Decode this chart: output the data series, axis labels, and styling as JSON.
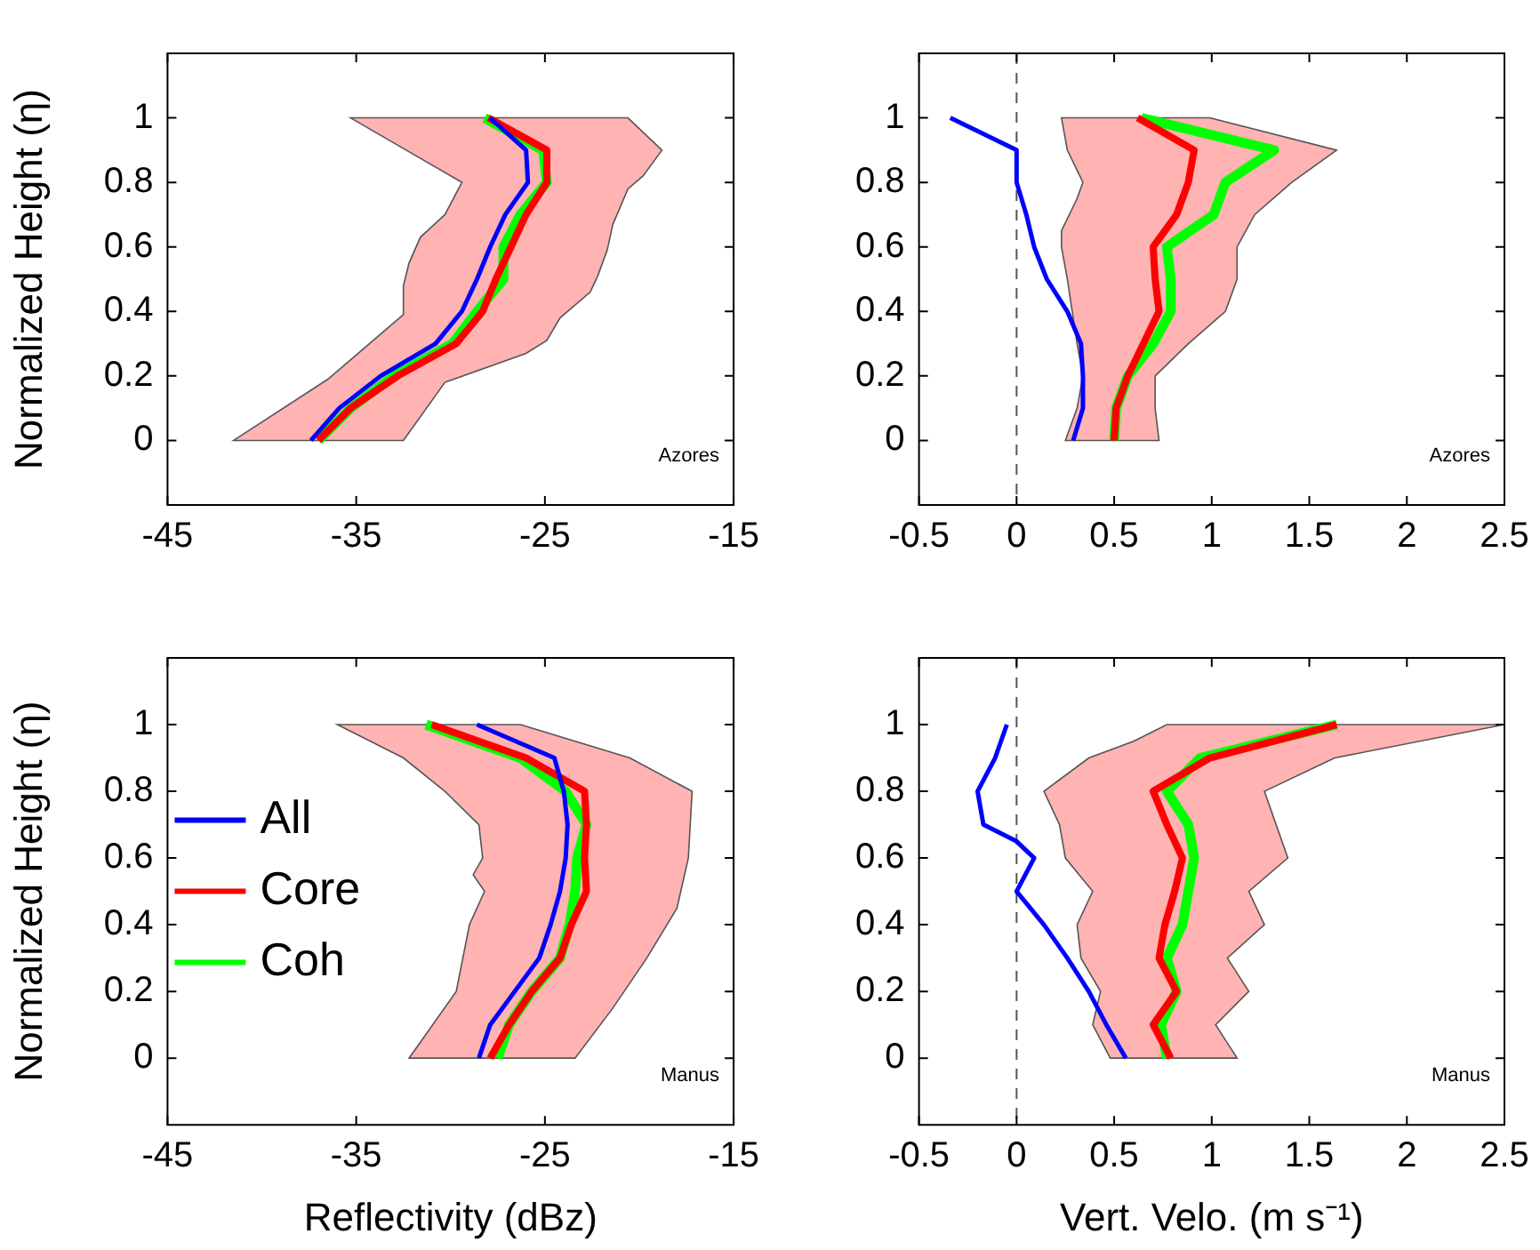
{
  "chart_data": [
    {
      "type": "line",
      "ylabel": "Normalized Height (η)",
      "xlim": [
        -45,
        -15
      ],
      "xticks": [
        -45,
        -35,
        -25,
        -15
      ],
      "ylim": [
        -0.2,
        1.2
      ],
      "yticks": [
        0,
        0.2,
        0.4,
        0.6,
        0.8,
        1
      ],
      "grid": false,
      "legend": false,
      "annotations": [
        "Azores"
      ],
      "series": [
        {
          "type": "area",
          "color": "#ffb3b3",
          "x": [
            -20.6,
            -18.8,
            -19.8,
            -20.6,
            -21.4,
            -21.7,
            -22.2,
            -22.6,
            -24.2,
            -24.9,
            -26.0,
            -30.3,
            -32.5,
            -41.5,
            -36.5,
            -33.7,
            -32.5,
            -32.5,
            -32.2,
            -31.6,
            -30.3,
            -29.4,
            -35.3
          ],
          "values": [
            1,
            0.9,
            0.82,
            0.78,
            0.67,
            0.59,
            0.51,
            0.46,
            0.38,
            0.31,
            0.27,
            0.18,
            0,
            0,
            0.19,
            0.33,
            0.39,
            0.48,
            0.55,
            0.63,
            0.7,
            0.8,
            1
          ]
        },
        {
          "color": "#0000ff",
          "x": [
            -37.4,
            -35.9,
            -33.7,
            -30.8,
            -29.4,
            -28.6,
            -27.9,
            -27.1,
            -25.9,
            -26.0,
            -27.9
          ],
          "values": [
            0,
            0.1,
            0.2,
            0.3,
            0.4,
            0.5,
            0.6,
            0.7,
            0.8,
            0.9,
            1
          ]
        },
        {
          "color": "#ff0000",
          "x": [
            -37.0,
            -35.3,
            -32.8,
            -29.7,
            -28.3,
            -27.6,
            -26.8,
            -26.0,
            -24.9,
            -24.9,
            -28.0
          ],
          "values": [
            0,
            0.1,
            0.2,
            0.3,
            0.4,
            0.5,
            0.6,
            0.7,
            0.8,
            0.9,
            1
          ]
        },
        {
          "color": "#00ff00",
          "x": [
            -37.0,
            -35.3,
            -33.0,
            -29.9,
            -28.6,
            -27.2,
            -27.2,
            -26.3,
            -24.9,
            -25.1,
            -28.2
          ],
          "values": [
            0,
            0.1,
            0.2,
            0.3,
            0.4,
            0.5,
            0.6,
            0.7,
            0.8,
            0.9,
            1
          ]
        }
      ]
    },
    {
      "type": "line",
      "xlim": [
        -0.5,
        2.5
      ],
      "xticks": [
        -0.5,
        0,
        0.5,
        1,
        1.5,
        2,
        2.5
      ],
      "ylim": [
        -0.2,
        1.2
      ],
      "yticks": [
        0,
        0.2,
        0.4,
        0.6,
        0.8,
        1
      ],
      "grid": false,
      "legend": false,
      "annotations": [
        "Azores"
      ],
      "ref_lines": [
        {
          "axis": "x",
          "value": 0,
          "color": "#555555",
          "line_style": "dashed"
        }
      ],
      "series": [
        {
          "type": "area",
          "color": "#ffb3b3",
          "x": [
            0.99,
            1.64,
            1.41,
            1.22,
            1.13,
            1.13,
            1.07,
            0.88,
            0.71,
            0.71,
            0.73,
            0.25,
            0.31,
            0.34,
            0.31,
            0.26,
            0.23,
            0.23,
            0.31,
            0.34,
            0.26,
            0.23
          ],
          "values": [
            1,
            0.9,
            0.8,
            0.7,
            0.6,
            0.5,
            0.4,
            0.3,
            0.2,
            0.1,
            0,
            0,
            0.1,
            0.2,
            0.3,
            0.5,
            0.6,
            0.65,
            0.75,
            0.8,
            0.9,
            1
          ]
        },
        {
          "color": "#0000ff",
          "x": [
            0.29,
            0.34,
            0.34,
            0.33,
            0.26,
            0.155,
            0.09,
            0.05,
            0.0,
            0.0,
            -0.34
          ],
          "values": [
            0,
            0.1,
            0.2,
            0.3,
            0.4,
            0.5,
            0.6,
            0.7,
            0.8,
            0.9,
            1
          ]
        },
        {
          "color": "#ff0000",
          "x": [
            0.5,
            0.51,
            0.57,
            0.65,
            0.73,
            0.71,
            0.7,
            0.82,
            0.88,
            0.91,
            0.62
          ],
          "values": [
            0,
            0.1,
            0.2,
            0.3,
            0.4,
            0.5,
            0.6,
            0.7,
            0.8,
            0.9,
            1
          ]
        },
        {
          "color": "#00ff00",
          "x": [
            0.5,
            0.51,
            0.57,
            0.7,
            0.79,
            0.79,
            0.77,
            1.01,
            1.07,
            1.32,
            0.64
          ],
          "values": [
            0,
            0.1,
            0.2,
            0.3,
            0.4,
            0.5,
            0.6,
            0.7,
            0.8,
            0.9,
            1
          ]
        }
      ]
    },
    {
      "type": "line",
      "ylabel": "Normalized Height (η)",
      "xlabel": "Reflectivity (dBz)",
      "xlim": [
        -45,
        -15
      ],
      "xticks": [
        -45,
        -35,
        -25,
        -15
      ],
      "ylim": [
        -0.2,
        1.2
      ],
      "yticks": [
        0,
        0.2,
        0.4,
        0.6,
        0.8,
        1
      ],
      "grid": false,
      "legend": "left",
      "annotations": [
        "Manus"
      ],
      "series": [
        {
          "type": "area",
          "color": "#ffb3b3",
          "x": [
            -26.3,
            -20.5,
            -17.2,
            -17.4,
            -18.0,
            -19.6,
            -21.4,
            -23.4,
            -32.2,
            -29.7,
            -29.0,
            -28.2,
            -28.8,
            -28.3,
            -28.5,
            -30.3,
            -32.5,
            -36.0
          ],
          "values": [
            1,
            0.9,
            0.8,
            0.6,
            0.45,
            0.3,
            0.15,
            0,
            0,
            0.2,
            0.4,
            0.5,
            0.55,
            0.6,
            0.7,
            0.8,
            0.9,
            1
          ]
        },
        {
          "name": "All",
          "color": "#0000ff",
          "x": [
            -28.5,
            -27.9,
            -26.6,
            -25.3,
            -24.7,
            -24.2,
            -23.9,
            -23.8,
            -24.0,
            -24.5,
            -28.6
          ],
          "values": [
            0,
            0.1,
            0.2,
            0.3,
            0.4,
            0.5,
            0.6,
            0.7,
            0.8,
            0.9,
            1
          ]
        },
        {
          "name": "Core",
          "color": "#ff0000",
          "x": [
            -27.9,
            -26.9,
            -25.7,
            -24.2,
            -23.6,
            -22.8,
            -22.9,
            -22.8,
            -22.9,
            -26.0,
            -31.0
          ],
          "values": [
            0,
            0.1,
            0.2,
            0.3,
            0.4,
            0.5,
            0.6,
            0.7,
            0.8,
            0.9,
            1
          ]
        },
        {
          "name": "Coh",
          "color": "#00ff00",
          "x": [
            -27.5,
            -26.9,
            -25.7,
            -24.2,
            -23.7,
            -23.4,
            -23.3,
            -22.8,
            -23.9,
            -26.3,
            -31.3
          ],
          "values": [
            0,
            0.1,
            0.2,
            0.3,
            0.4,
            0.5,
            0.6,
            0.7,
            0.8,
            0.9,
            1
          ]
        }
      ]
    },
    {
      "type": "line",
      "xlabel": "Vert. Velo. (m s⁻¹)",
      "xlim": [
        -0.5,
        2.5
      ],
      "xticks": [
        -0.5,
        0,
        0.5,
        1,
        1.5,
        2,
        2.5
      ],
      "ylim": [
        -0.2,
        1.2
      ],
      "yticks": [
        0,
        0.2,
        0.4,
        0.6,
        0.8,
        1
      ],
      "grid": false,
      "legend": false,
      "annotations": [
        "Manus"
      ],
      "ref_lines": [
        {
          "axis": "x",
          "value": 0,
          "color": "#555555",
          "line_style": "dashed"
        }
      ],
      "series": [
        {
          "type": "area",
          "color": "#ffb3b3",
          "x": [
            2.5,
            1.63,
            1.27,
            1.39,
            1.19,
            1.27,
            1.08,
            1.19,
            1.02,
            1.13,
            0.48,
            0.39,
            0.43,
            0.33,
            0.31,
            0.39,
            0.25,
            0.22,
            0.14,
            0.37,
            0.6,
            0.77
          ],
          "values": [
            1,
            0.9,
            0.8,
            0.6,
            0.5,
            0.4,
            0.3,
            0.2,
            0.1,
            0,
            0,
            0.1,
            0.2,
            0.3,
            0.4,
            0.5,
            0.6,
            0.7,
            0.8,
            0.9,
            0.95,
            1
          ]
        },
        {
          "color": "#0000ff",
          "x": [
            0.56,
            0.46,
            0.37,
            0.26,
            0.14,
            0.0,
            0.09,
            0.0,
            -0.17,
            -0.2,
            -0.11,
            -0.05
          ],
          "values": [
            0,
            0.1,
            0.2,
            0.3,
            0.4,
            0.5,
            0.6,
            0.65,
            0.7,
            0.8,
            0.9,
            1
          ]
        },
        {
          "color": "#ff0000",
          "x": [
            0.79,
            0.7,
            0.82,
            0.73,
            0.76,
            0.81,
            0.85,
            0.77,
            0.7,
            0.99,
            1.64
          ],
          "values": [
            0,
            0.1,
            0.2,
            0.3,
            0.4,
            0.5,
            0.6,
            0.7,
            0.8,
            0.9,
            1
          ]
        },
        {
          "color": "#00ff00",
          "x": [
            0.77,
            0.74,
            0.82,
            0.77,
            0.85,
            0.88,
            0.91,
            0.88,
            0.77,
            0.94,
            1.64
          ],
          "values": [
            0,
            0.1,
            0.2,
            0.3,
            0.4,
            0.5,
            0.6,
            0.7,
            0.8,
            0.9,
            1
          ]
        }
      ]
    }
  ]
}
